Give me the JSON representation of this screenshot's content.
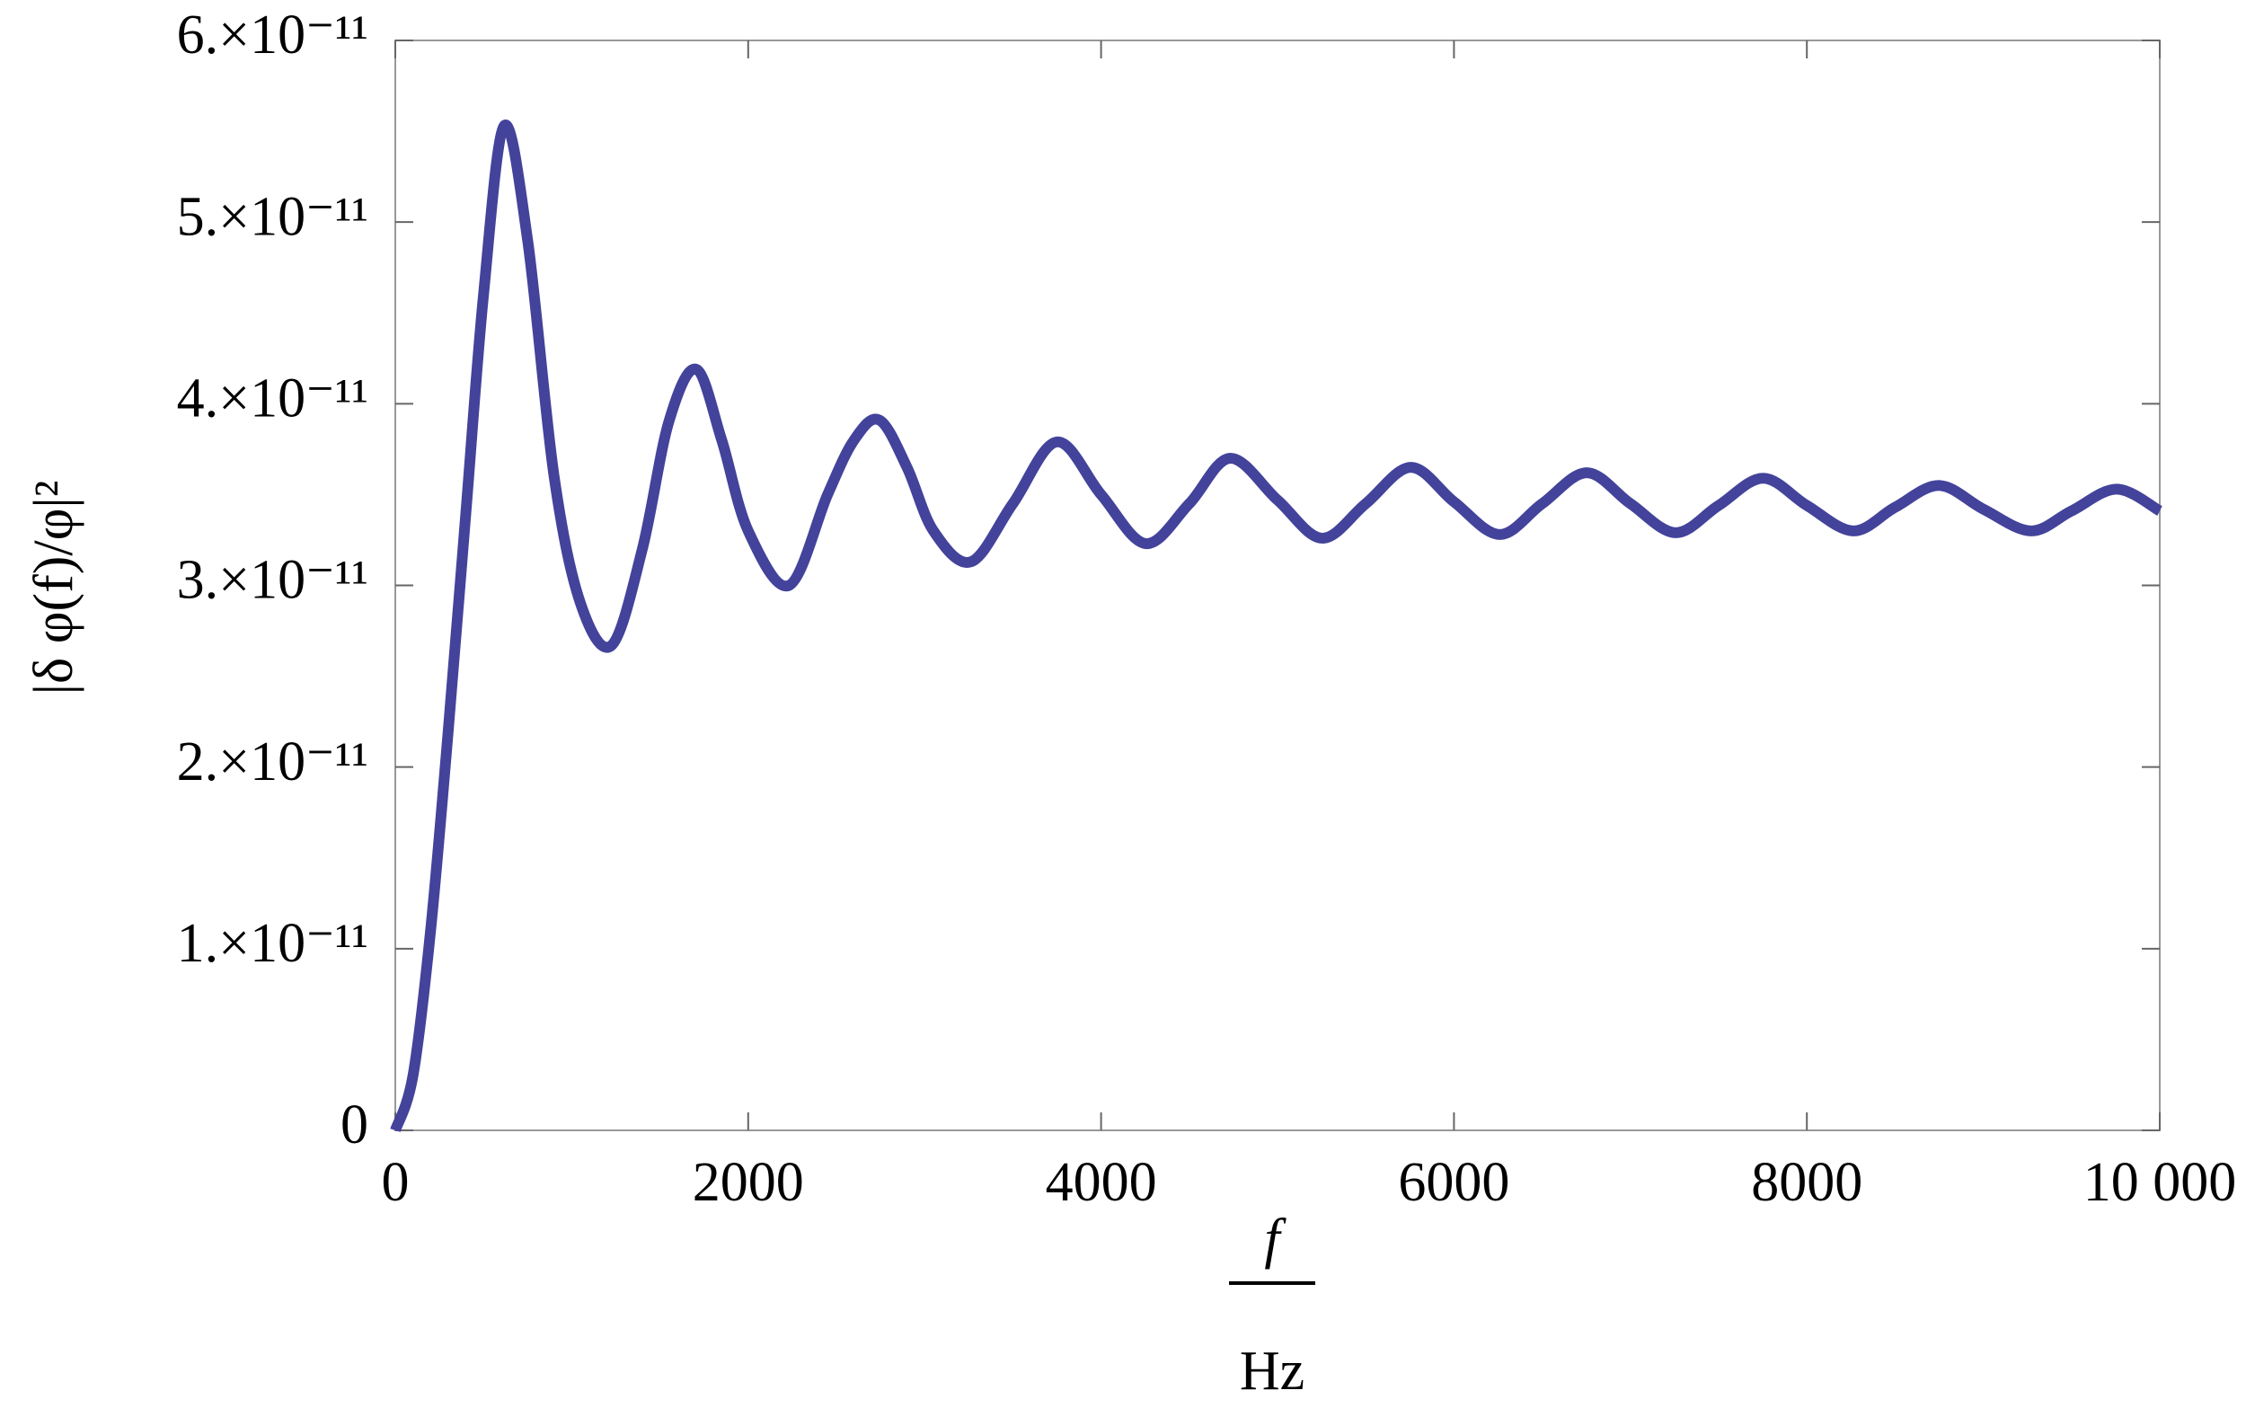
{
  "chart_data": {
    "type": "line",
    "y_label": "|δ φ(f)/φ|²",
    "x_label": {
      "numerator": "f",
      "denominator": "Hz"
    },
    "x": [
      0,
      100,
      200,
      300,
      400,
      500,
      617,
      750,
      900,
      1050,
      1226,
      1400,
      1550,
      1705,
      1850,
      2000,
      2232,
      2450,
      2600,
      2744,
      2900,
      3050,
      3263,
      3500,
      3750,
      4000,
      4253,
      4500,
      4732,
      5000,
      5252,
      5500,
      5755,
      6000,
      6258,
      6500,
      6753,
      7000,
      7256,
      7500,
      7752,
      8000,
      8263,
      8500,
      8750,
      9000,
      9269,
      9500,
      9756,
      10000
    ],
    "series": [
      {
        "color": "#43439b",
        "values": [
          0,
          3e-12,
          1.1e-11,
          2.2e-11,
          3.4e-11,
          4.6e-11,
          5.53e-11,
          4.9e-11,
          3.6e-11,
          2.9e-11,
          2.67e-11,
          3.2e-11,
          3.9e-11,
          4.19e-11,
          3.8e-11,
          3.3e-11,
          3e-11,
          3.5e-11,
          3.8e-11,
          3.91e-11,
          3.65e-11,
          3.3e-11,
          3.13e-11,
          3.45e-11,
          3.79e-11,
          3.5e-11,
          3.23e-11,
          3.45e-11,
          3.7e-11,
          3.47e-11,
          3.26e-11,
          3.45e-11,
          3.65e-11,
          3.46e-11,
          3.28e-11,
          3.45e-11,
          3.62e-11,
          3.45e-11,
          3.29e-11,
          3.44e-11,
          3.59e-11,
          3.44e-11,
          3.3e-11,
          3.43e-11,
          3.55e-11,
          3.42e-11,
          3.3e-11,
          3.41e-11,
          3.53e-11,
          3.41e-11
        ]
      }
    ],
    "xlim": [
      0,
      10000
    ],
    "xticks": [
      0,
      2000,
      4000,
      6000,
      8000,
      {
        "value": 10000,
        "label": "10 000"
      }
    ],
    "ylim": [
      0,
      6e-11
    ],
    "yticks": [
      0,
      {
        "value": 1e-11,
        "label": "1.×10⁻¹¹"
      },
      {
        "value": 2e-11,
        "label": "2.×10⁻¹¹"
      },
      {
        "value": 3e-11,
        "label": "3.×10⁻¹¹"
      },
      {
        "value": 4e-11,
        "label": "4.×10⁻¹¹"
      },
      {
        "value": 5e-11,
        "label": "5.×10⁻¹¹"
      },
      {
        "value": 6e-11,
        "label": "6.×10⁻¹¹"
      }
    ]
  }
}
